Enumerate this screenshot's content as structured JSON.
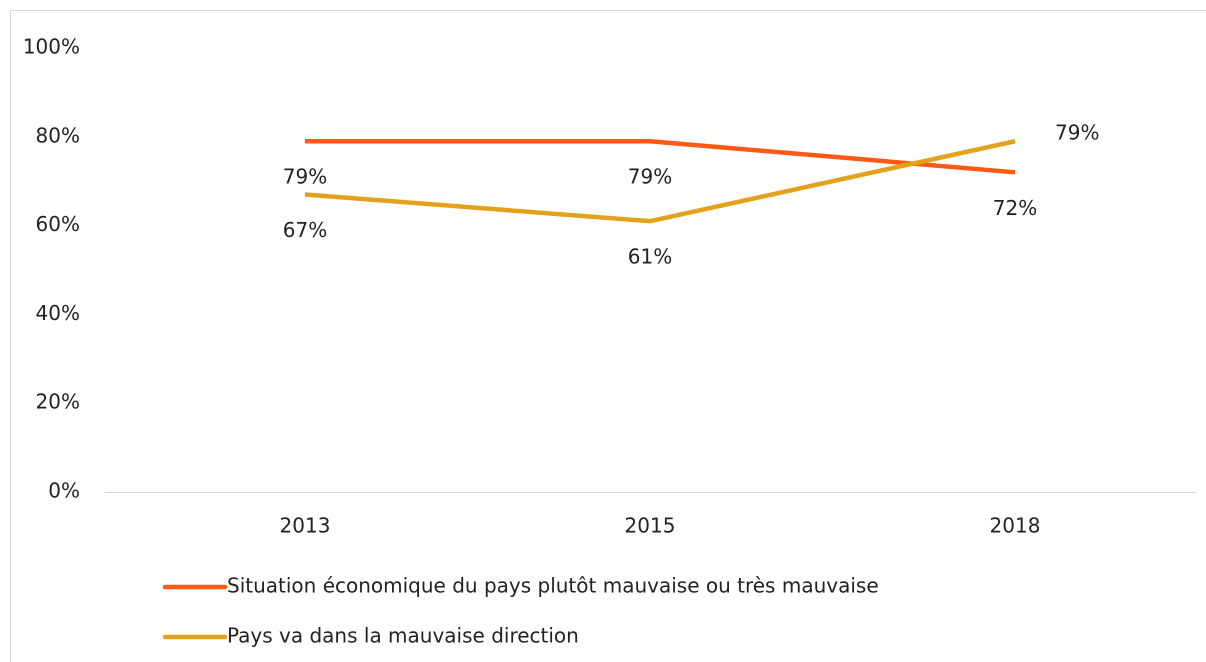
{
  "chart_data": {
    "type": "line",
    "categories": [
      "2013",
      "2015",
      "2018"
    ],
    "series": [
      {
        "name": "Situation économique du pays plutôt mauvaise ou très mauvaise",
        "color": "#ff5a14",
        "values": [
          79,
          79,
          72
        ],
        "value_labels": [
          "79%",
          "79%",
          "72%"
        ]
      },
      {
        "name": "Pays va dans la mauvaise direction",
        "color": "#e3a21a",
        "values": [
          67,
          61,
          79
        ],
        "value_labels": [
          "67%",
          "61%",
          "79%"
        ]
      }
    ],
    "ylim": [
      0,
      100
    ],
    "yticks": [
      {
        "value": 0,
        "label": "0%"
      },
      {
        "value": 20,
        "label": "20%"
      },
      {
        "value": 40,
        "label": "40%"
      },
      {
        "value": 60,
        "label": "60%"
      },
      {
        "value": 80,
        "label": "80%"
      },
      {
        "value": 100,
        "label": "100%"
      }
    ],
    "grid": false,
    "legend": "bottom"
  }
}
